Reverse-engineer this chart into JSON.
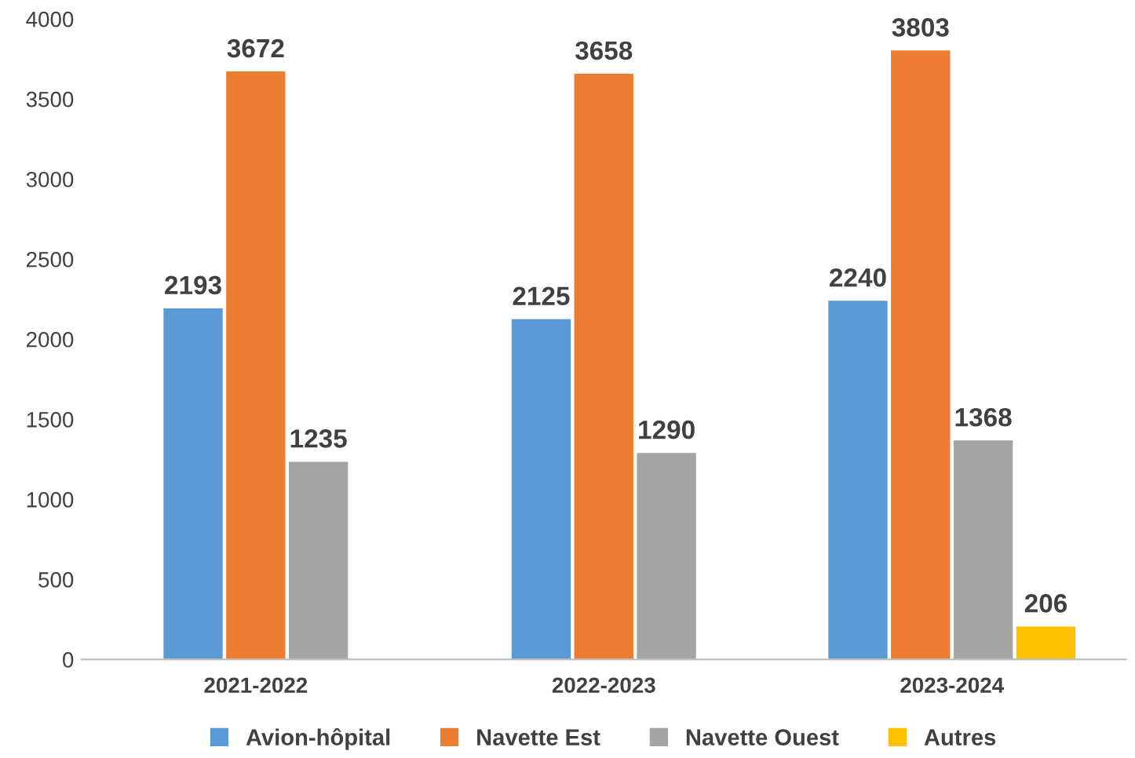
{
  "chart_data": {
    "type": "bar",
    "categories": [
      "2021-2022",
      "2022-2023",
      "2023-2024"
    ],
    "series": [
      {
        "name": "Avion-hôpital",
        "color": "#5b9bd5",
        "values": [
          2193,
          2125,
          2240
        ]
      },
      {
        "name": "Navette Est",
        "color": "#ed7d31",
        "values": [
          3672,
          3658,
          3803
        ]
      },
      {
        "name": "Navette Ouest",
        "color": "#a5a5a5",
        "values": [
          1235,
          1290,
          1368
        ]
      },
      {
        "name": "Autres",
        "color": "#ffc000",
        "values": [
          null,
          null,
          206
        ]
      }
    ],
    "ylim": [
      0,
      4000
    ],
    "yticks": [
      0,
      500,
      1000,
      1500,
      2000,
      2500,
      3000,
      3500,
      4000
    ],
    "grid": false,
    "legend": "bottom",
    "data_labels": true
  }
}
